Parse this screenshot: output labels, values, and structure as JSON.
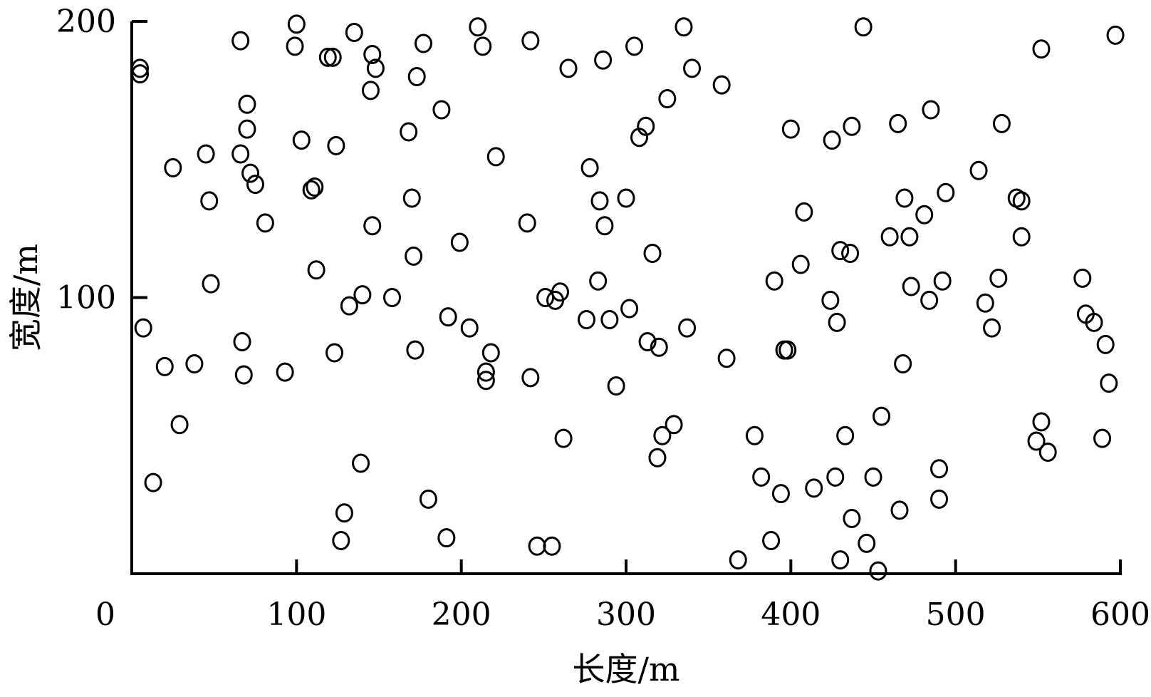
{
  "chart_data": {
    "type": "scatter",
    "title": "",
    "xlabel": "长度/m",
    "ylabel": "宽度/m",
    "xlim": [
      0,
      600
    ],
    "ylim": [
      0,
      200
    ],
    "xticks": [
      "0",
      "100",
      "200",
      "300",
      "400",
      "500",
      "600"
    ],
    "yticks": [
      "100",
      "200"
    ],
    "grid": false,
    "marker": "hollow-circle",
    "points": [
      [
        5,
        183
      ],
      [
        5,
        181
      ],
      [
        7,
        89
      ],
      [
        13,
        33
      ],
      [
        20,
        75
      ],
      [
        25,
        147
      ],
      [
        29,
        54
      ],
      [
        38,
        76
      ],
      [
        45,
        152
      ],
      [
        47,
        135
      ],
      [
        48,
        105
      ],
      [
        66,
        193
      ],
      [
        66,
        152
      ],
      [
        67,
        84
      ],
      [
        68,
        72
      ],
      [
        70,
        170
      ],
      [
        70,
        161
      ],
      [
        72,
        145
      ],
      [
        75,
        141
      ],
      [
        81,
        127
      ],
      [
        93,
        73
      ],
      [
        99,
        191
      ],
      [
        100,
        199
      ],
      [
        103,
        157
      ],
      [
        109,
        139
      ],
      [
        111,
        140
      ],
      [
        112,
        110
      ],
      [
        119,
        187
      ],
      [
        122,
        187
      ],
      [
        124,
        155
      ],
      [
        123,
        80
      ],
      [
        127,
        12
      ],
      [
        129,
        22
      ],
      [
        132,
        97
      ],
      [
        135,
        196
      ],
      [
        139,
        40
      ],
      [
        140,
        101
      ],
      [
        145,
        175
      ],
      [
        146,
        126
      ],
      [
        146,
        188
      ],
      [
        148,
        183
      ],
      [
        158,
        100
      ],
      [
        168,
        160
      ],
      [
        170,
        136
      ],
      [
        171,
        115
      ],
      [
        172,
        81
      ],
      [
        173,
        180
      ],
      [
        177,
        192
      ],
      [
        180,
        27
      ],
      [
        188,
        168
      ],
      [
        191,
        13
      ],
      [
        192,
        93
      ],
      [
        199,
        120
      ],
      [
        205,
        89
      ],
      [
        210,
        198
      ],
      [
        213,
        191
      ],
      [
        215,
        70
      ],
      [
        215,
        73
      ],
      [
        218,
        80
      ],
      [
        221,
        151
      ],
      [
        240,
        127
      ],
      [
        242,
        71
      ],
      [
        242,
        193
      ],
      [
        246,
        10
      ],
      [
        251,
        100
      ],
      [
        255,
        10
      ],
      [
        257,
        99
      ],
      [
        260,
        102
      ],
      [
        262,
        49
      ],
      [
        265,
        183
      ],
      [
        276,
        92
      ],
      [
        278,
        147
      ],
      [
        283,
        106
      ],
      [
        284,
        135
      ],
      [
        286,
        186
      ],
      [
        287,
        126
      ],
      [
        290,
        92
      ],
      [
        294,
        68
      ],
      [
        300,
        136
      ],
      [
        302,
        96
      ],
      [
        305,
        191
      ],
      [
        308,
        158
      ],
      [
        312,
        162
      ],
      [
        313,
        84
      ],
      [
        316,
        116
      ],
      [
        319,
        42
      ],
      [
        320,
        82
      ],
      [
        322,
        50
      ],
      [
        325,
        172
      ],
      [
        329,
        54
      ],
      [
        335,
        198
      ],
      [
        337,
        89
      ],
      [
        340,
        183
      ],
      [
        358,
        177
      ],
      [
        361,
        78
      ],
      [
        368,
        5
      ],
      [
        378,
        50
      ],
      [
        382,
        35
      ],
      [
        388,
        12
      ],
      [
        390,
        106
      ],
      [
        394,
        29
      ],
      [
        396,
        81
      ],
      [
        398,
        81
      ],
      [
        400,
        161
      ],
      [
        406,
        112
      ],
      [
        408,
        131
      ],
      [
        414,
        31
      ],
      [
        424,
        99
      ],
      [
        425,
        157
      ],
      [
        427,
        35
      ],
      [
        428,
        91
      ],
      [
        430,
        117
      ],
      [
        430,
        5
      ],
      [
        433,
        50
      ],
      [
        436,
        116
      ],
      [
        437,
        20
      ],
      [
        437,
        162
      ],
      [
        444,
        198
      ],
      [
        446,
        11
      ],
      [
        450,
        35
      ],
      [
        453,
        1
      ],
      [
        455,
        57
      ],
      [
        460,
        122
      ],
      [
        465,
        163
      ],
      [
        466,
        23
      ],
      [
        468,
        76
      ],
      [
        469,
        136
      ],
      [
        472,
        122
      ],
      [
        473,
        104
      ],
      [
        481,
        130
      ],
      [
        484,
        99
      ],
      [
        485,
        168
      ],
      [
        490,
        38
      ],
      [
        490,
        27
      ],
      [
        492,
        106
      ],
      [
        494,
        138
      ],
      [
        514,
        146
      ],
      [
        518,
        98
      ],
      [
        522,
        89
      ],
      [
        526,
        107
      ],
      [
        528,
        163
      ],
      [
        537,
        136
      ],
      [
        540,
        135
      ],
      [
        540,
        122
      ],
      [
        549,
        48
      ],
      [
        552,
        55
      ],
      [
        552,
        190
      ],
      [
        556,
        44
      ],
      [
        577,
        107
      ],
      [
        579,
        94
      ],
      [
        584,
        91
      ],
      [
        589,
        49
      ],
      [
        591,
        83
      ],
      [
        593,
        69
      ],
      [
        597,
        195
      ]
    ]
  }
}
